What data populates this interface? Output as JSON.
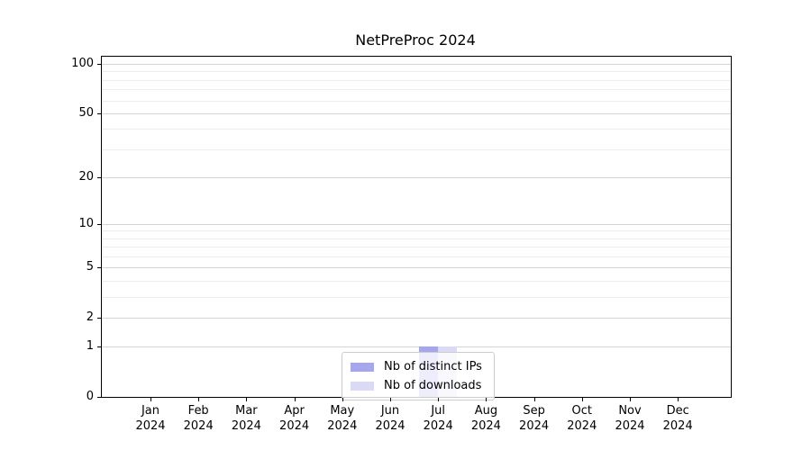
{
  "figure": {
    "title": "NetPreProc 2024"
  },
  "chart_data": {
    "type": "bar",
    "title": "NetPreProc 2024",
    "categories": [
      "Jan 2024",
      "Feb 2024",
      "Mar 2024",
      "Apr 2024",
      "May 2024",
      "Jun 2024",
      "Jul 2024",
      "Aug 2024",
      "Sep 2024",
      "Oct 2024",
      "Nov 2024",
      "Dec 2024"
    ],
    "series": [
      {
        "name": "Nb of distinct IPs",
        "color": "#a6a6ef",
        "values": [
          0,
          0,
          0,
          0,
          0,
          0,
          1,
          0,
          0,
          0,
          0,
          0
        ]
      },
      {
        "name": "Nb of downloads",
        "color": "#dadaf5",
        "values": [
          0,
          0,
          0,
          0,
          0,
          0,
          1,
          0,
          0,
          0,
          0,
          0
        ]
      }
    ],
    "xlabel": "",
    "ylabel": "",
    "y_scale": "log1p",
    "y_major_ticks": [
      0,
      1,
      2,
      5,
      10,
      20,
      50,
      100
    ],
    "y_minor_ticks": [
      3,
      4,
      6,
      7,
      8,
      9,
      30,
      40,
      60,
      70,
      80,
      90
    ],
    "ylim": [
      0,
      110
    ],
    "grid": "horizontal",
    "legend_position": "lower center"
  },
  "legend": {
    "items": [
      {
        "label": "Nb of distinct IPs",
        "color": "#a6a6ef"
      },
      {
        "label": "Nb of downloads",
        "color": "#dadaf5"
      }
    ]
  },
  "colors": {
    "background": "#ffffff",
    "axis": "#000000",
    "grid_major": "#d4d4d4",
    "grid_minor": "#ececec",
    "text": "#000000"
  }
}
